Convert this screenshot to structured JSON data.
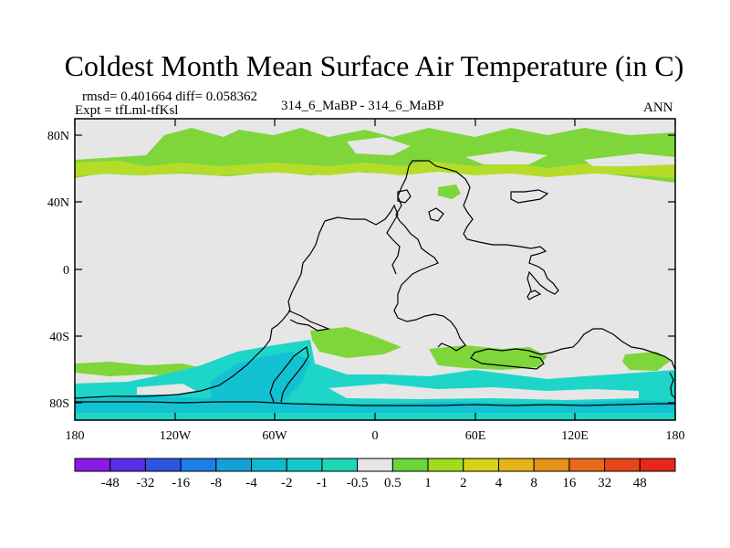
{
  "title": "Coldest Month Mean Surface Air Temperature (in C)",
  "stats": {
    "rmsd_diff": "rmsd= 0.401664 diff= 0.058362",
    "expt": "Expt = tfLml-tfKsl",
    "center": "314_6_MaBP - 314_6_MaBP",
    "right": "ANN"
  },
  "axes": {
    "y_ticks": [
      "80N",
      "40N",
      "0",
      "40S",
      "80S"
    ],
    "x_ticks": [
      "180",
      "120W",
      "60W",
      "0",
      "60E",
      "120E",
      "180"
    ]
  },
  "colorbar": {
    "labels": [
      "-48",
      "-32",
      "-16",
      "-8",
      "-4",
      "-2",
      "-1",
      "-0.5",
      "0.5",
      "1",
      "2",
      "4",
      "8",
      "16",
      "32",
      "48"
    ],
    "colors": [
      "#8a1ae6",
      "#5a2ee6",
      "#2f55e0",
      "#1e7ee8",
      "#169fd8",
      "#12b8d0",
      "#15c8c8",
      "#1dd6b4",
      "#e6e6e6",
      "#6ad63a",
      "#a0dc1e",
      "#d6d21a",
      "#e6b41a",
      "#e6911a",
      "#e66a1a",
      "#e6461a",
      "#e6281a"
    ]
  },
  "colors": {
    "background": "#e6e6e6",
    "warm_anomaly": "#7ed63a",
    "warm_anomaly_strong": "#b6dc2a",
    "cold_anomaly": "#1dd6c8",
    "cold_anomaly_strong": "#12c2d2",
    "coastline": "#000000"
  }
}
